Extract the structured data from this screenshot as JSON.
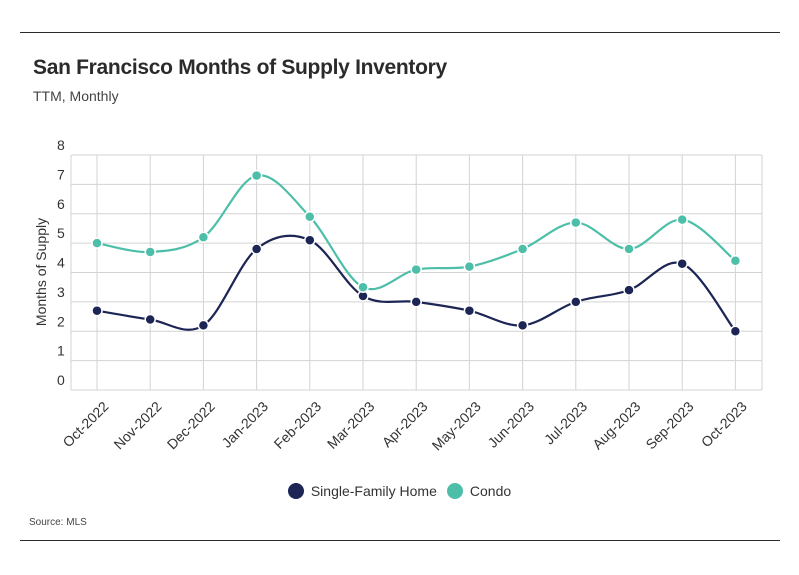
{
  "header": {
    "title": "San Francisco Months of Supply Inventory",
    "subtitle": "TTM, Monthly"
  },
  "footer": {
    "source": "Source:  MLS"
  },
  "chart_data": {
    "type": "line",
    "title": "San Francisco Months of Supply Inventory",
    "subtitle": "TTM, Monthly",
    "xlabel": "",
    "ylabel": "Months of Supply",
    "ylim": [
      0,
      8
    ],
    "yticks": [
      0,
      1,
      2,
      3,
      4,
      5,
      6,
      7,
      8
    ],
    "grid": true,
    "legend_position": "bottom-center",
    "categories": [
      "Oct-2022",
      "Nov-2022",
      "Dec-2022",
      "Jan-2023",
      "Feb-2023",
      "Mar-2023",
      "Apr-2023",
      "May-2023",
      "Jun-2023",
      "Jul-2023",
      "Aug-2023",
      "Sep-2023",
      "Oct-2023"
    ],
    "series": [
      {
        "name": "Single-Family Home",
        "color": "#1c2554",
        "values": [
          2.7,
          2.4,
          2.2,
          4.8,
          5.1,
          3.2,
          3.0,
          2.7,
          2.2,
          3.0,
          3.4,
          4.3,
          2.0
        ]
      },
      {
        "name": "Condo",
        "color": "#4dbfa8",
        "values": [
          5.0,
          4.7,
          5.2,
          7.3,
          5.9,
          3.5,
          4.1,
          4.2,
          4.8,
          5.7,
          4.8,
          5.8,
          4.4
        ]
      }
    ]
  }
}
